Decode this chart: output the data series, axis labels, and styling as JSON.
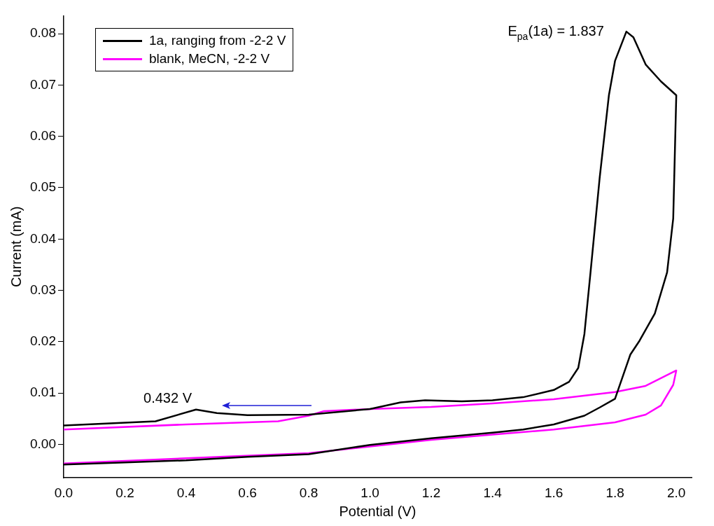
{
  "chart_data": {
    "type": "line",
    "xlabel": "Potential (V)",
    "ylabel": "Current (mA)",
    "xlim": [
      0,
      2.05
    ],
    "ylim": [
      -0.0065,
      0.0835
    ],
    "xticks": [
      {
        "value": 0,
        "label": "0.0"
      },
      {
        "value": 0.2,
        "label": "0.2"
      },
      {
        "value": 0.4,
        "label": "0.4"
      },
      {
        "value": 0.6,
        "label": "0.6"
      },
      {
        "value": 0.8,
        "label": "0.8"
      },
      {
        "value": 1,
        "label": "1.0"
      },
      {
        "value": 1.2,
        "label": "1.2"
      },
      {
        "value": 1.4,
        "label": "1.4"
      },
      {
        "value": 1.6,
        "label": "1.6"
      },
      {
        "value": 1.8,
        "label": "1.8"
      },
      {
        "value": 2,
        "label": "2.0"
      }
    ],
    "yticks": [
      {
        "value": 0,
        "label": "0.00"
      },
      {
        "value": 0.01,
        "label": "0.01"
      },
      {
        "value": 0.02,
        "label": "0.02"
      },
      {
        "value": 0.03,
        "label": "0.03"
      },
      {
        "value": 0.04,
        "label": "0.04"
      },
      {
        "value": 0.05,
        "label": "0.05"
      },
      {
        "value": 0.06,
        "label": "0.06"
      },
      {
        "value": 0.07,
        "label": "0.07"
      },
      {
        "value": 0.08,
        "label": "0.08"
      }
    ],
    "grid": false,
    "legend": "top left",
    "marker": "none",
    "line_style": "solid",
    "series": [
      {
        "name": "1a, ranging from -2-2 V",
        "color": "#000000",
        "x": [
          0,
          0.3,
          0.432,
          0.5,
          0.6,
          0.8,
          1.0,
          1.1,
          1.18,
          1.3,
          1.4,
          1.5,
          1.6,
          1.65,
          1.68,
          1.7,
          1.72,
          1.75,
          1.78,
          1.8,
          1.837,
          1.86,
          1.9,
          1.95,
          2.0,
          1.99,
          1.97,
          1.93,
          1.88,
          1.85,
          1.8,
          1.75,
          1.7,
          1.6,
          1.5,
          1.4,
          1.2,
          1.0,
          0.8,
          0.6,
          0.4,
          0.2,
          0
        ],
        "values": [
          0.0037,
          0.0045,
          0.0068,
          0.0061,
          0.0057,
          0.0058,
          0.0069,
          0.0082,
          0.0086,
          0.0084,
          0.0086,
          0.0092,
          0.0106,
          0.0122,
          0.0149,
          0.0215,
          0.0335,
          0.052,
          0.068,
          0.0747,
          0.0804,
          0.0793,
          0.074,
          0.0707,
          0.068,
          0.044,
          0.0335,
          0.0255,
          0.0202,
          0.0175,
          0.0089,
          0.0072,
          0.0056,
          0.0039,
          0.0029,
          0.0023,
          0.0012,
          -0.0001,
          -0.0019,
          -0.0024,
          -0.0031,
          -0.0035,
          -0.0039
        ]
      },
      {
        "name": "blank, MeCN, -2-2 V",
        "color": "#ff00ff",
        "x": [
          0,
          0.4,
          0.7,
          0.8,
          0.85,
          1.0,
          1.2,
          1.4,
          1.6,
          1.8,
          1.9,
          2.0,
          1.99,
          1.95,
          1.9,
          1.8,
          1.6,
          1.4,
          1.2,
          1.0,
          0.8,
          0.4,
          0
        ],
        "values": [
          0.0029,
          0.0039,
          0.0045,
          0.0056,
          0.0065,
          0.0069,
          0.0073,
          0.008,
          0.0088,
          0.0102,
          0.0114,
          0.0144,
          0.0116,
          0.0076,
          0.0058,
          0.0043,
          0.0029,
          0.0019,
          0.0009,
          -0.0004,
          -0.0017,
          -0.0027,
          -0.0037
        ]
      }
    ],
    "annotations": [
      {
        "text": "E$_{pa}$(1a) = 1.837",
        "x": 1.837,
        "y": 0.0804
      },
      {
        "text": "0.432 V",
        "x": 0.432,
        "y": 0.0068
      }
    ]
  }
}
